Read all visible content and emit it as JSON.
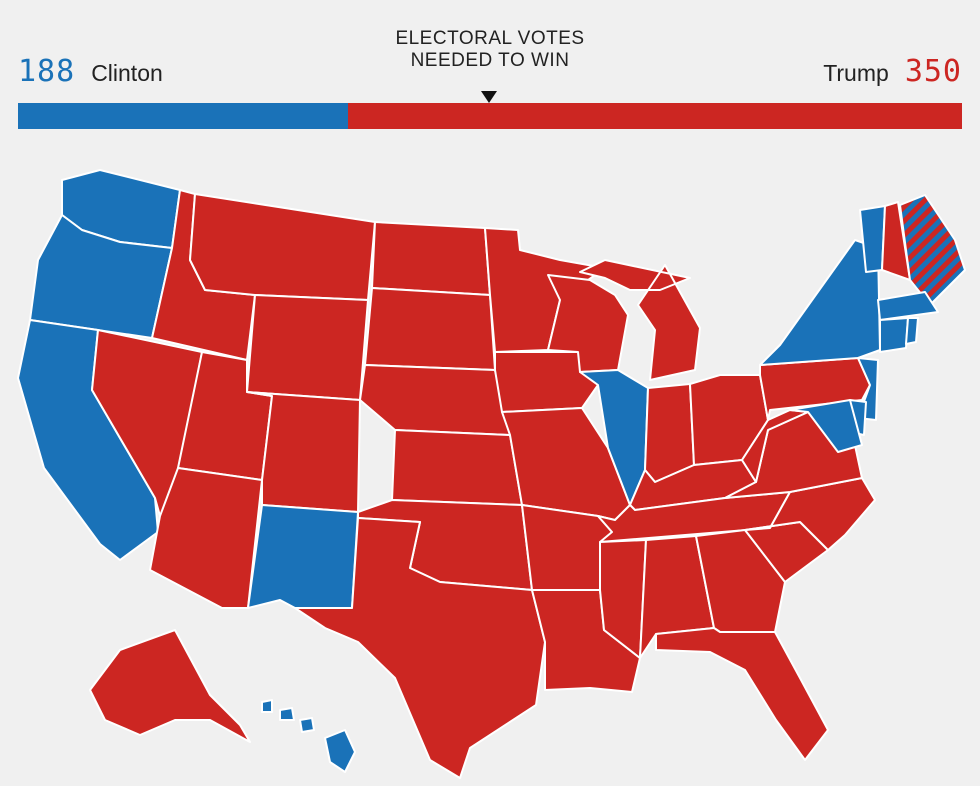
{
  "colors": {
    "democrat": "#1a72b8",
    "republican": "#cc2622",
    "background": "#f0f0f0",
    "border": "#ffffff"
  },
  "header": {
    "left": {
      "votes": "188",
      "name": "Clinton",
      "ev": 188
    },
    "right": {
      "votes": "350",
      "name": "Trump",
      "ev": 350
    },
    "threshold_line1": "ELECTORAL VOTES",
    "threshold_line2": "NEEDED TO WIN"
  },
  "map": {
    "states": [
      {
        "id": "WA",
        "winner": "D"
      },
      {
        "id": "OR",
        "winner": "D"
      },
      {
        "id": "CA",
        "winner": "D"
      },
      {
        "id": "NV",
        "winner": "R"
      },
      {
        "id": "ID",
        "winner": "R"
      },
      {
        "id": "MT",
        "winner": "R"
      },
      {
        "id": "WY",
        "winner": "R"
      },
      {
        "id": "UT",
        "winner": "R"
      },
      {
        "id": "AZ",
        "winner": "R"
      },
      {
        "id": "CO",
        "winner": "R"
      },
      {
        "id": "NM",
        "winner": "D"
      },
      {
        "id": "ND",
        "winner": "R"
      },
      {
        "id": "SD",
        "winner": "R"
      },
      {
        "id": "NE",
        "winner": "R"
      },
      {
        "id": "KS",
        "winner": "R"
      },
      {
        "id": "OK",
        "winner": "R"
      },
      {
        "id": "TX",
        "winner": "R"
      },
      {
        "id": "MN",
        "winner": "R"
      },
      {
        "id": "IA",
        "winner": "R"
      },
      {
        "id": "MO",
        "winner": "R"
      },
      {
        "id": "AR",
        "winner": "R"
      },
      {
        "id": "LA",
        "winner": "R"
      },
      {
        "id": "WI",
        "winner": "R"
      },
      {
        "id": "IL",
        "winner": "D"
      },
      {
        "id": "MI",
        "winner": "R"
      },
      {
        "id": "IN",
        "winner": "R"
      },
      {
        "id": "OH",
        "winner": "R"
      },
      {
        "id": "KY",
        "winner": "R"
      },
      {
        "id": "TN",
        "winner": "R"
      },
      {
        "id": "MS",
        "winner": "R"
      },
      {
        "id": "AL",
        "winner": "R"
      },
      {
        "id": "GA",
        "winner": "R"
      },
      {
        "id": "FL",
        "winner": "R"
      },
      {
        "id": "SC",
        "winner": "R"
      },
      {
        "id": "NC",
        "winner": "R"
      },
      {
        "id": "VA",
        "winner": "R"
      },
      {
        "id": "WV",
        "winner": "R"
      },
      {
        "id": "PA",
        "winner": "R"
      },
      {
        "id": "NY",
        "winner": "D"
      },
      {
        "id": "VT",
        "winner": "D"
      },
      {
        "id": "NH",
        "winner": "R"
      },
      {
        "id": "ME",
        "winner": "split"
      },
      {
        "id": "MA",
        "winner": "D"
      },
      {
        "id": "CT",
        "winner": "D"
      },
      {
        "id": "RI",
        "winner": "D"
      },
      {
        "id": "NJ",
        "winner": "D"
      },
      {
        "id": "DE",
        "winner": "D"
      },
      {
        "id": "MD",
        "winner": "D"
      },
      {
        "id": "AK",
        "winner": "R"
      },
      {
        "id": "HI",
        "winner": "D"
      }
    ]
  }
}
